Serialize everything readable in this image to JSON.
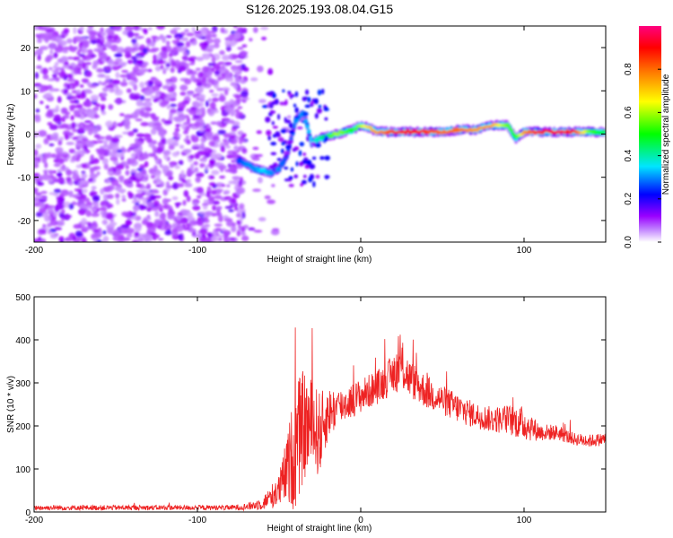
{
  "title": "S126.2025.193.08.04.G15",
  "chart_data": [
    {
      "type": "heatmap",
      "xlabel": "Height of straight line (km)",
      "ylabel": "Frequency (Hz)",
      "xlim": [
        -200,
        150
      ],
      "ylim": [
        -25,
        25
      ],
      "x_ticks": [
        -200,
        -100,
        0,
        100
      ],
      "y_ticks": [
        -20,
        -10,
        0,
        10,
        20
      ],
      "x_tick_labels": [
        "-200",
        "-100",
        "0",
        "100"
      ],
      "y_tick_labels": [
        "-20",
        "-10",
        "0",
        "10",
        "20"
      ],
      "colorbar": {
        "label": "Normalized spectral amplitude",
        "range": [
          0,
          1
        ],
        "ticks": [
          0.0,
          0.2,
          0.4,
          0.6,
          0.8
        ],
        "tick_labels": [
          "0.0",
          "0.2",
          "0.4",
          "0.6",
          "0.8"
        ],
        "colormap": [
          "#ffffff",
          "#9a00ff",
          "#0000ff",
          "#00e5ff",
          "#00ff00",
          "#ffff00",
          "#ff8000",
          "#ff0000",
          "#ff0080"
        ]
      },
      "ridge": {
        "x": [
          -75,
          -70,
          -65,
          -60,
          -55,
          -50,
          -45,
          -40,
          -35,
          -30,
          -25,
          -20,
          -15,
          -10,
          -5,
          0,
          5,
          10,
          20,
          30,
          40,
          50,
          60,
          70,
          80,
          85,
          90,
          95,
          100,
          110,
          120,
          130,
          140,
          150
        ],
        "y": [
          -6,
          -7,
          -8,
          -8.5,
          -9,
          -8,
          -5,
          3,
          5,
          -2,
          -1,
          -0.5,
          0,
          0.5,
          1,
          2,
          1.5,
          0.5,
          0.5,
          0.5,
          0.5,
          0.5,
          1,
          1,
          2,
          2,
          2,
          -1,
          0.5,
          0.5,
          0.5,
          0.5,
          0.5,
          0.5
        ],
        "amplitude": [
          0.25,
          0.3,
          0.3,
          0.35,
          0.3,
          0.3,
          0.25,
          0.3,
          0.3,
          0.35,
          0.4,
          0.5,
          0.6,
          0.55,
          0.5,
          0.6,
          0.7,
          0.75,
          0.85,
          0.9,
          0.85,
          0.8,
          0.8,
          0.75,
          0.75,
          0.65,
          0.55,
          0.5,
          0.75,
          0.9,
          0.95,
          0.9,
          0.55,
          0.45
        ]
      },
      "noise_region": [
        -200,
        -70
      ]
    },
    {
      "type": "line",
      "xlabel": "Height of straight line (km)",
      "ylabel": "SNR (10 * v/v)",
      "xlim": [
        -200,
        150
      ],
      "ylim": [
        0,
        500
      ],
      "x_ticks": [
        -200,
        -100,
        0,
        100
      ],
      "y_ticks": [
        0,
        100,
        200,
        300,
        400,
        500
      ],
      "x_tick_labels": [
        "-200",
        "-100",
        "0",
        "100"
      ],
      "y_tick_labels": [
        "0",
        "100",
        "200",
        "300",
        "400",
        "500"
      ],
      "line_color": "#ee2222",
      "envelope": {
        "x": [
          -200,
          -150,
          -100,
          -80,
          -70,
          -60,
          -50,
          -45,
          -40,
          -35,
          -30,
          -25,
          -20,
          -10,
          0,
          10,
          20,
          25,
          30,
          40,
          50,
          60,
          70,
          80,
          90,
          100,
          110,
          120,
          130,
          140,
          150
        ],
        "mean": [
          10,
          10,
          10,
          10,
          12,
          20,
          50,
          100,
          150,
          200,
          200,
          180,
          230,
          250,
          270,
          290,
          320,
          340,
          310,
          280,
          260,
          240,
          225,
          215,
          215,
          205,
          185,
          185,
          170,
          165,
          170
        ],
        "amp": [
          6,
          6,
          6,
          6,
          8,
          15,
          40,
          80,
          150,
          130,
          110,
          100,
          60,
          40,
          40,
          40,
          45,
          60,
          45,
          40,
          35,
          35,
          30,
          30,
          35,
          40,
          20,
          18,
          15,
          15,
          15
        ]
      }
    }
  ]
}
